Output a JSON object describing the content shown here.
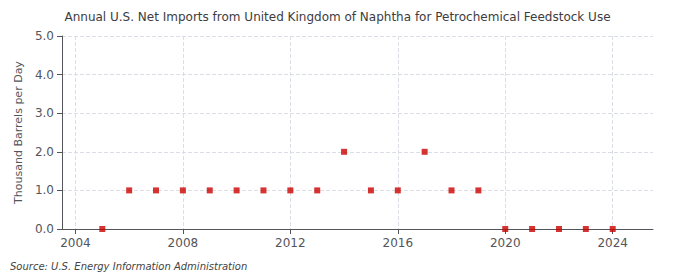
{
  "chart_data": {
    "type": "scatter",
    "title": "Annual U.S. Net Imports from United Kingdom of Naphtha for Petrochemical Feedstock Use",
    "ylabel": "Thousand Barrels per Day",
    "annotations": [
      "Source: U.S. Energy Information Administration"
    ],
    "x": [
      2005,
      2006,
      2007,
      2008,
      2009,
      2010,
      2011,
      2012,
      2013,
      2014,
      2015,
      2016,
      2017,
      2018,
      2019,
      2020,
      2021,
      2022,
      2023,
      2024
    ],
    "values": [
      0.0,
      1.0,
      1.0,
      1.0,
      1.0,
      1.0,
      1.0,
      1.0,
      1.0,
      2.0,
      1.0,
      1.0,
      2.0,
      1.0,
      1.0,
      0.0,
      0.0,
      0.0,
      0.0,
      0.0
    ],
    "color": "#cc0000",
    "marker": "square",
    "xlim": [
      2003.5,
      2025.5
    ],
    "xticks": [
      2004,
      2008,
      2012,
      2016,
      2020,
      2024
    ],
    "ylim": [
      0.0,
      5.0
    ],
    "yticks": [
      {
        "value": 0,
        "label": "0.0"
      },
      {
        "value": 1,
        "label": "1.0"
      },
      {
        "value": 2,
        "label": "2.0"
      },
      {
        "value": 3,
        "label": "3.0"
      },
      {
        "value": 4,
        "label": "4.0"
      },
      {
        "value": 5,
        "label": "5.0"
      }
    ],
    "grid": true
  }
}
